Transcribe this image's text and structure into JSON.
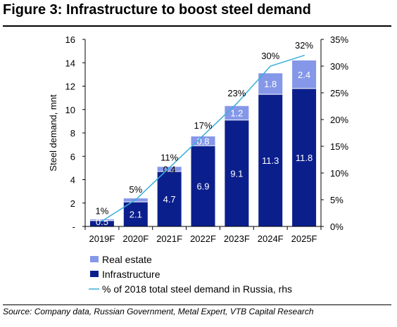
{
  "title": "Figure 3: Infrastructure to boost steel demand",
  "source": "Source: Company data, Russian Government, Metal Expert, VTB Capital Research",
  "chart_data": {
    "type": "bar",
    "stacked": true,
    "categories": [
      "2019F",
      "2020F",
      "2021F",
      "2022F",
      "2023F",
      "2024F",
      "2025F"
    ],
    "ylabel": "Steel demand, mnt",
    "ylim": [
      0,
      16
    ],
    "y_ticks": [
      {
        "value": 0,
        "label": "-"
      },
      {
        "value": 2,
        "label": "2"
      },
      {
        "value": 4,
        "label": "4"
      },
      {
        "value": 6,
        "label": "6"
      },
      {
        "value": 8,
        "label": "8"
      },
      {
        "value": 10,
        "label": "10"
      },
      {
        "value": 12,
        "label": "12"
      },
      {
        "value": 14,
        "label": "14"
      },
      {
        "value": 16,
        "label": "16"
      }
    ],
    "y2lim": [
      0,
      35
    ],
    "y2_ticks": [
      {
        "value": 0,
        "label": "0%"
      },
      {
        "value": 5,
        "label": "5%"
      },
      {
        "value": 10,
        "label": "10%"
      },
      {
        "value": 15,
        "label": "15%"
      },
      {
        "value": 20,
        "label": "20%"
      },
      {
        "value": 25,
        "label": "25%"
      },
      {
        "value": 30,
        "label": "30%"
      },
      {
        "value": 35,
        "label": "35%"
      }
    ],
    "series": [
      {
        "name": "Infrastructure",
        "color": "#0b1f8c",
        "values": [
          0.5,
          2.1,
          4.7,
          6.9,
          9.1,
          11.3,
          11.8
        ],
        "labels": [
          "0.5",
          "2.1",
          "4.7",
          "6.9",
          "9.1",
          "11.3",
          "11.8"
        ]
      },
      {
        "name": "Real estate",
        "color": "#8597e8",
        "values": [
          0.1,
          0.3,
          0.4,
          0.8,
          1.2,
          1.8,
          2.4
        ],
        "labels": [
          "",
          "",
          "0.4",
          "0.8",
          "1.2",
          "1.8",
          "2.4"
        ]
      }
    ],
    "line_series": {
      "name": "% of 2018 total steel demand in Russia, rhs",
      "axis": "right",
      "color": "#3aaedc",
      "values": [
        1,
        5,
        11,
        17,
        23,
        30,
        32
      ],
      "labels": [
        "1%",
        "5%",
        "11%",
        "17%",
        "23%",
        "30%",
        "32%"
      ]
    },
    "legend_position": "bottom-left",
    "grid": false
  }
}
